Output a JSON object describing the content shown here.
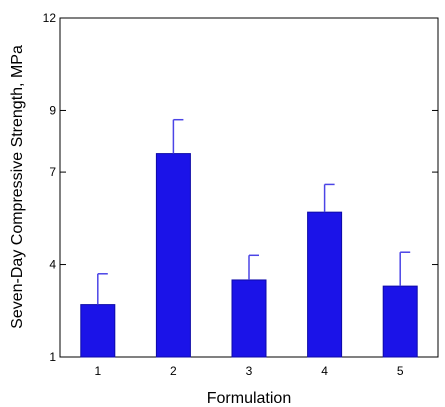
{
  "chart_data": {
    "type": "bar",
    "categories": [
      "1",
      "2",
      "3",
      "4",
      "5"
    ],
    "values": [
      2.7,
      7.6,
      3.5,
      5.7,
      3.3
    ],
    "error_upper": [
      3.7,
      8.7,
      4.3,
      6.6,
      4.4
    ],
    "xlabel": "Formulation",
    "ylabel": "Seven-Day Compressive Strength, MPa",
    "ylim": [
      1,
      12
    ],
    "yticks": [
      1,
      4,
      7,
      9,
      12
    ],
    "ytick_labels": [
      "1",
      "4",
      "7",
      "9",
      "12"
    ],
    "grid": false,
    "legend": "none",
    "bar_color": "#1b13e8",
    "error_bar_color": "#4b44e6"
  }
}
